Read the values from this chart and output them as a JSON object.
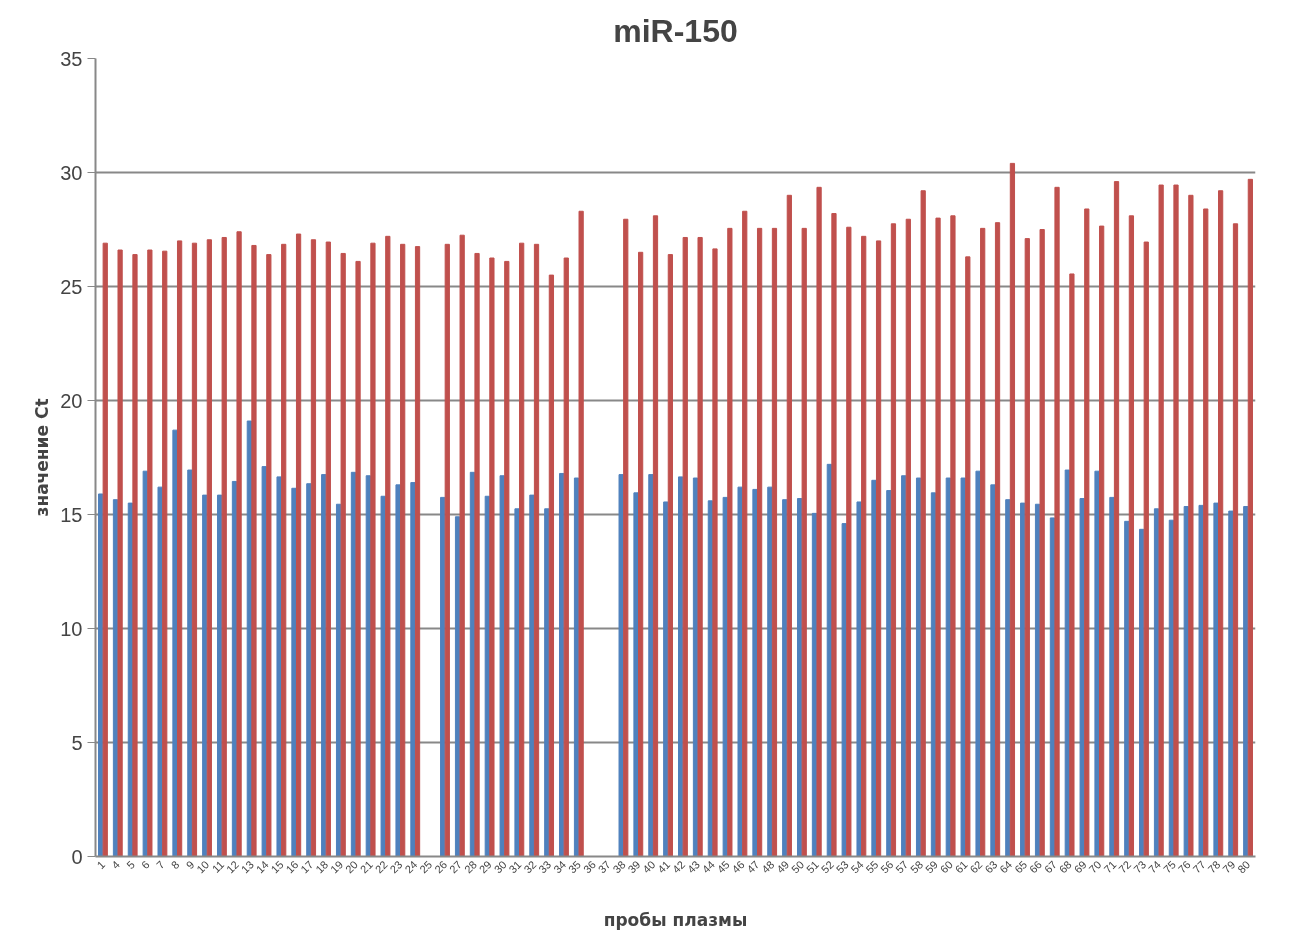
{
  "chart_data": {
    "type": "bar",
    "title": "miR-150",
    "xlabel": "пробы плазмы",
    "ylabel": "значение Ct",
    "categories": [
      "1",
      "4",
      "5",
      "6",
      "7",
      "8",
      "9",
      "10",
      "11",
      "12",
      "13",
      "14",
      "15",
      "16",
      "17",
      "18",
      "19",
      "20",
      "21",
      "22",
      "23",
      "24",
      "25",
      "26",
      "27",
      "28",
      "29",
      "30",
      "31",
      "32",
      "33",
      "34",
      "35",
      "36",
      "37",
      "38",
      "39",
      "40",
      "41",
      "42",
      "43",
      "44",
      "45",
      "46",
      "47",
      "48",
      "49",
      "50",
      "51",
      "52",
      "53",
      "54",
      "55",
      "56",
      "57",
      "58",
      "59",
      "60",
      "61",
      "62",
      "63",
      "64",
      "65",
      "66",
      "67",
      "68",
      "69",
      "70",
      "71",
      "72",
      "73",
      "74",
      "75",
      "76",
      "77",
      "78",
      "79",
      "80"
    ],
    "series": [
      {
        "color": "#4f81bd",
        "values": [
          15.9,
          15.65,
          15.5,
          16.9,
          16.2,
          18.7,
          16.95,
          15.85,
          15.85,
          16.45,
          19.1,
          17.1,
          16.65,
          16.15,
          16.35,
          16.75,
          15.45,
          16.85,
          16.7,
          15.8,
          16.3,
          16.4,
          null,
          15.75,
          14.9,
          16.85,
          15.8,
          16.7,
          15.25,
          15.85,
          15.25,
          16.8,
          16.6,
          null,
          null,
          16.75,
          15.95,
          16.75,
          15.55,
          16.65,
          16.6,
          15.6,
          15.75,
          16.2,
          16.1,
          16.2,
          15.65,
          15.7,
          15.05,
          17.2,
          14.6,
          15.55,
          16.5,
          16.05,
          16.7,
          16.6,
          15.95,
          16.6,
          16.6,
          16.9,
          16.3,
          15.65,
          15.5,
          15.45,
          14.85,
          16.95,
          15.7,
          16.9,
          15.75,
          14.7,
          14.35,
          15.25,
          14.75,
          15.35,
          15.4,
          15.5,
          15.15,
          15.35
        ]
      },
      {
        "color": "#c0504d",
        "values": [
          26.9,
          26.6,
          26.4,
          26.6,
          26.55,
          27.0,
          26.9,
          27.05,
          27.15,
          27.4,
          26.8,
          26.4,
          26.85,
          27.3,
          27.05,
          26.95,
          26.45,
          26.1,
          26.9,
          27.2,
          26.85,
          26.75,
          null,
          26.85,
          27.25,
          26.45,
          26.25,
          26.1,
          26.9,
          26.85,
          25.5,
          26.25,
          28.3,
          null,
          null,
          27.95,
          26.5,
          28.1,
          26.4,
          27.15,
          27.15,
          26.65,
          27.55,
          28.3,
          27.55,
          27.55,
          29.0,
          27.55,
          29.35,
          28.2,
          27.6,
          27.2,
          27.0,
          27.75,
          27.95,
          29.2,
          28.0,
          28.1,
          26.3,
          27.55,
          27.8,
          30.4,
          27.1,
          27.5,
          29.35,
          25.55,
          28.4,
          27.65,
          29.6,
          28.1,
          26.95,
          29.45,
          29.45,
          29.0,
          28.4,
          29.2,
          27.75,
          29.7
        ]
      }
    ],
    "ylim": [
      0,
      35
    ],
    "yticks": [
      0,
      5,
      10,
      15,
      20,
      25,
      30,
      35
    ],
    "grid": "y"
  }
}
